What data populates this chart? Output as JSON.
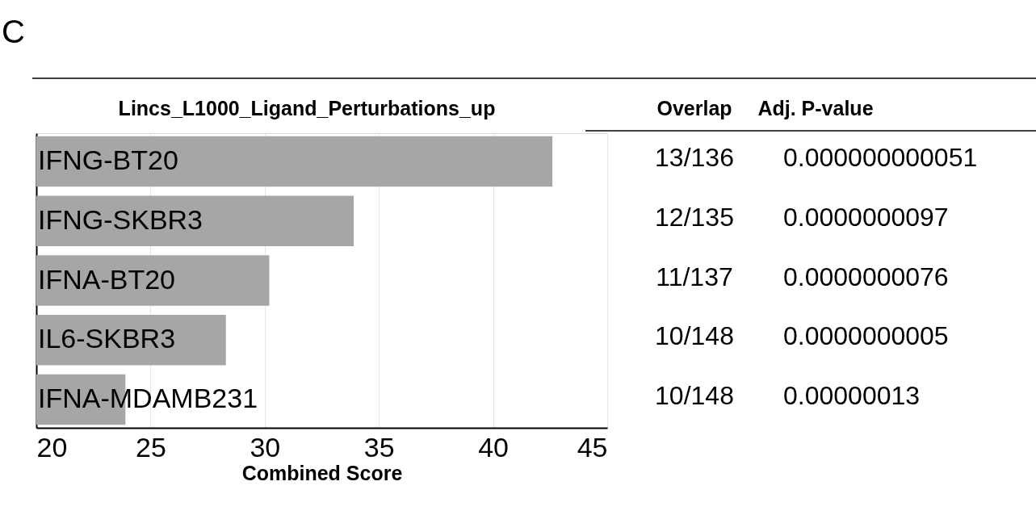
{
  "chart_data": {
    "type": "bar",
    "orientation": "horizontal",
    "title": "Lincs_L1000_Ligand_Perturbations_up",
    "xlabel": "Combined Score",
    "categories": [
      "IFNG-BT20",
      "IFNG-SKBR3",
      "IFNA-BT20",
      "IL6-SKBR3",
      "IFNA-MDAMB231"
    ],
    "values": [
      42.6,
      33.9,
      30.2,
      28.3,
      23.9
    ],
    "color": "#a6a6a6",
    "xlim": [
      20,
      45
    ],
    "xticks": [
      20,
      25,
      30,
      35,
      40,
      45
    ],
    "grid": "x",
    "tick_labels": "x",
    "annotations": [
      "C",
      "Overlap",
      "Adj. P-value",
      "13/136",
      "0.000000000051",
      "12/135",
      "0.0000000097",
      "11/137",
      "0.0000000076",
      "10/148",
      "0.0000000005",
      "10/148",
      "0.00000013"
    ]
  }
}
